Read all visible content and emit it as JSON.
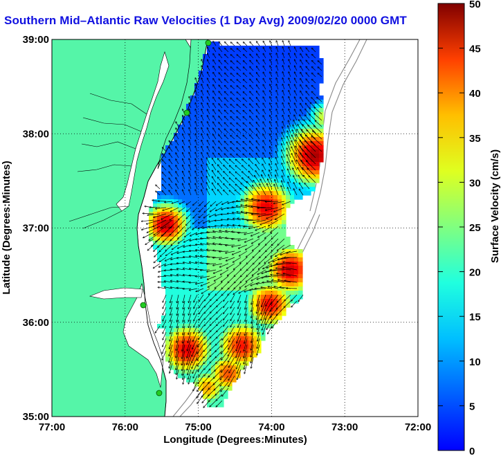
{
  "title": "Southern Mid–Atlantic Raw Velocities (1 Day Avg) 2009/02/20 0000 GMT",
  "map": {
    "xlabel": "Longitude (Degrees:Minutes)",
    "ylabel": "Latitude (Degrees:Minutes)",
    "x_ticks": [
      "77:00",
      "76:00",
      "75:00",
      "74:00",
      "73:00",
      "72:00"
    ],
    "y_ticks": [
      "39:00",
      "38:00",
      "37:00",
      "36:00",
      "35:00"
    ],
    "lon_range": [
      -77,
      -72
    ],
    "lat_range": [
      35,
      39
    ],
    "grid": "dotted"
  },
  "colorbar": {
    "label": "Surface Velocity (cm/s)",
    "ticks": [
      "50",
      "45",
      "40",
      "35",
      "30",
      "25",
      "20",
      "15",
      "10",
      "5",
      "0"
    ],
    "range": [
      0,
      50
    ],
    "colormap": "jet"
  },
  "colors": {
    "land": "#55f5a8",
    "title": "#1010e0",
    "station": "#22cc22"
  }
}
